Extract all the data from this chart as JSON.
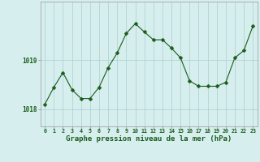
{
  "x": [
    0,
    1,
    2,
    3,
    4,
    5,
    6,
    7,
    8,
    9,
    10,
    11,
    12,
    13,
    14,
    15,
    16,
    17,
    18,
    19,
    20,
    21,
    22,
    23
  ],
  "y": [
    1018.1,
    1018.45,
    1018.75,
    1018.4,
    1018.22,
    1018.22,
    1018.45,
    1018.85,
    1019.15,
    1019.55,
    1019.75,
    1019.58,
    1019.42,
    1019.42,
    1019.25,
    1019.05,
    1018.58,
    1018.47,
    1018.47,
    1018.47,
    1018.55,
    1019.05,
    1019.2,
    1019.7
  ],
  "line_color": "#1a5c1a",
  "marker": "D",
  "markersize": 2.5,
  "bg_color": "#d6eeee",
  "grid_color": "#aacfcf",
  "xlabel": "Graphe pression niveau de la mer (hPa)",
  "xlabel_fontsize": 6.5,
  "tick_label_color": "#1a5c1a",
  "ytick_labels": [
    "1018",
    "1019"
  ],
  "ytick_values": [
    1018,
    1019
  ],
  "ylim": [
    1017.65,
    1020.2
  ],
  "xlim": [
    -0.5,
    23.5
  ],
  "xtick_values": [
    0,
    1,
    2,
    3,
    4,
    5,
    6,
    7,
    8,
    9,
    10,
    11,
    12,
    13,
    14,
    15,
    16,
    17,
    18,
    19,
    20,
    21,
    22,
    23
  ]
}
